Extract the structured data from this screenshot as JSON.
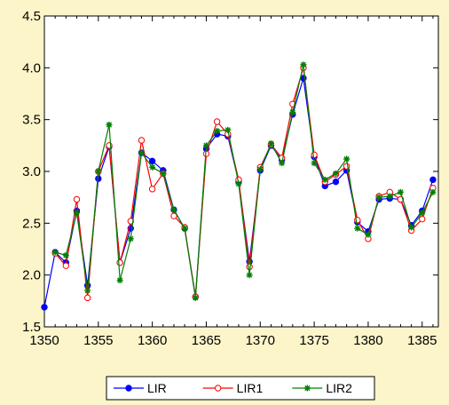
{
  "chart_data": {
    "type": "line",
    "x": [
      1350,
      1351,
      1352,
      1353,
      1354,
      1355,
      1356,
      1357,
      1358,
      1359,
      1360,
      1361,
      1362,
      1363,
      1364,
      1365,
      1366,
      1367,
      1368,
      1369,
      1370,
      1371,
      1372,
      1373,
      1374,
      1375,
      1376,
      1377,
      1378,
      1379,
      1380,
      1381,
      1382,
      1383,
      1384,
      1385,
      1386
    ],
    "xlim": [
      1350,
      1386.5
    ],
    "ylim": [
      1.5,
      4.5
    ],
    "xticks": [
      "1350",
      "1355",
      "1360",
      "1365",
      "1370",
      "1375",
      "1380",
      "1385"
    ],
    "yticks": [
      "1.5",
      "2.0",
      "2.5",
      "3.0",
      "3.5",
      "4.0",
      "4.5"
    ],
    "grid": false,
    "legend_position": "bottom",
    "series": [
      {
        "name": "LIR",
        "color": "#0000ff",
        "marker": "filled-circle",
        "values": [
          1.69,
          2.22,
          2.12,
          2.62,
          1.9,
          2.93,
          3.24,
          2.12,
          2.45,
          3.18,
          3.1,
          3.01,
          2.63,
          2.45,
          1.79,
          3.22,
          3.36,
          3.34,
          2.9,
          2.13,
          3.01,
          3.25,
          3.11,
          3.55,
          3.9,
          3.14,
          2.86,
          2.9,
          3.01,
          2.51,
          2.42,
          2.73,
          2.74,
          2.73,
          2.48,
          2.62,
          2.92
        ]
      },
      {
        "name": "LIR1",
        "color": "#ff0000",
        "marker": "hollow-circle",
        "values": [
          null,
          2.21,
          2.09,
          2.73,
          1.78,
          3.0,
          3.25,
          2.12,
          2.52,
          3.3,
          2.83,
          2.98,
          2.57,
          2.46,
          1.79,
          3.17,
          3.48,
          3.36,
          2.92,
          2.08,
          3.04,
          3.26,
          3.13,
          3.65,
          4.0,
          3.16,
          2.9,
          2.97,
          3.05,
          2.53,
          2.35,
          2.76,
          2.8,
          2.73,
          2.43,
          2.54,
          2.84
        ]
      },
      {
        "name": "LIR2",
        "color": "#008000",
        "marker": "asterisk",
        "values": [
          null,
          2.22,
          2.19,
          2.6,
          1.85,
          3.0,
          3.45,
          1.95,
          2.35,
          3.18,
          3.04,
          2.98,
          2.63,
          2.45,
          1.78,
          3.25,
          3.39,
          3.4,
          2.88,
          2.0,
          3.02,
          3.27,
          3.08,
          3.57,
          4.03,
          3.08,
          2.92,
          2.98,
          3.12,
          2.45,
          2.39,
          2.75,
          2.76,
          2.8,
          2.46,
          2.6,
          2.8
        ]
      }
    ]
  }
}
